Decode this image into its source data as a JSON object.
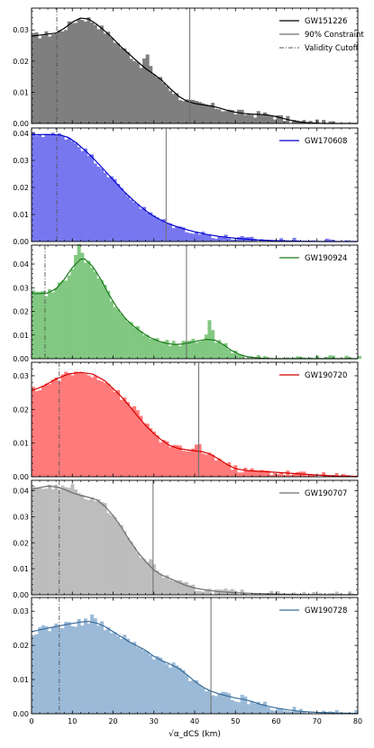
{
  "chart_data": {
    "type": "histogram",
    "layout": "6 stacked panels with shared x-axis",
    "xlabel": "√α_dCS (km)",
    "xlim": [
      0,
      80
    ],
    "xticks": [
      0,
      10,
      20,
      30,
      40,
      50,
      60,
      70,
      80
    ],
    "legend_entries": {
      "constraint": "90% Constraint",
      "cutoff": "Validity Cutoff"
    },
    "panels": [
      {
        "event": "GW151226",
        "color": "#000000",
        "fill": "#7f7f7f",
        "ylim": [
          0,
          0.037
        ],
        "yticks": [
          0.0,
          0.01,
          0.02,
          0.03
        ],
        "tick_labels": [
          "0.00",
          "0.01",
          "0.02",
          "0.03"
        ],
        "constraint": 38.8,
        "cutoff": 6.2,
        "show_full_legend": true,
        "curve": [
          [
            0,
            0.028
          ],
          [
            3,
            0.0285
          ],
          [
            6,
            0.029
          ],
          [
            8,
            0.0305
          ],
          [
            10,
            0.0325
          ],
          [
            12,
            0.0338
          ],
          [
            14,
            0.0335
          ],
          [
            16,
            0.0318
          ],
          [
            18,
            0.0296
          ],
          [
            20,
            0.0272
          ],
          [
            22,
            0.0245
          ],
          [
            24,
            0.0222
          ],
          [
            26,
            0.0198
          ],
          [
            28,
            0.0176
          ],
          [
            30,
            0.0158
          ],
          [
            32,
            0.0138
          ],
          [
            34,
            0.0112
          ],
          [
            36,
            0.0088
          ],
          [
            38,
            0.0072
          ],
          [
            40,
            0.0064
          ],
          [
            42,
            0.006
          ],
          [
            44,
            0.0056
          ],
          [
            46,
            0.005
          ],
          [
            48,
            0.0042
          ],
          [
            50,
            0.0036
          ],
          [
            52,
            0.0032
          ],
          [
            54,
            0.003
          ],
          [
            56,
            0.0029
          ],
          [
            58,
            0.0027
          ],
          [
            60,
            0.0022
          ],
          [
            62,
            0.0015
          ],
          [
            65,
            0.0006
          ],
          [
            68,
            0.0002
          ],
          [
            72,
            0.0
          ],
          [
            80,
            0.0
          ]
        ],
        "hist_noise": 0.0012,
        "hist_spikes": [
          [
            29,
            0.003
          ],
          [
            28,
            0.002
          ]
        ]
      },
      {
        "event": "GW170608",
        "color": "#0000cc",
        "fill": "#7777f0",
        "ylim": [
          0,
          0.042
        ],
        "yticks": [
          0.0,
          0.01,
          0.02,
          0.03,
          0.04
        ],
        "tick_labels": [
          "0.00",
          "0.01",
          "0.02",
          "0.03",
          "0.04"
        ],
        "constraint": 33.0,
        "cutoff": 6.2,
        "show_full_legend": false,
        "curve": [
          [
            0,
            0.0395
          ],
          [
            4,
            0.0396
          ],
          [
            7,
            0.0394
          ],
          [
            9,
            0.0385
          ],
          [
            11,
            0.0365
          ],
          [
            13,
            0.0338
          ],
          [
            15,
            0.031
          ],
          [
            17,
            0.0278
          ],
          [
            19,
            0.0245
          ],
          [
            21,
            0.0212
          ],
          [
            23,
            0.018
          ],
          [
            25,
            0.0152
          ],
          [
            27,
            0.0126
          ],
          [
            29,
            0.0103
          ],
          [
            31,
            0.0085
          ],
          [
            33,
            0.007
          ],
          [
            35,
            0.0058
          ],
          [
            37,
            0.0048
          ],
          [
            40,
            0.0036
          ],
          [
            43,
            0.0026
          ],
          [
            46,
            0.0019
          ],
          [
            50,
            0.0012
          ],
          [
            55,
            0.0006
          ],
          [
            60,
            0.0003
          ],
          [
            66,
            0.0001
          ],
          [
            72,
            0.0
          ],
          [
            80,
            0.0
          ]
        ],
        "hist_noise": 0.0012,
        "hist_spikes": []
      },
      {
        "event": "GW190924",
        "color": "#1a7a1a",
        "fill": "#82c882",
        "ylim": [
          0,
          0.048
        ],
        "yticks": [
          0.0,
          0.01,
          0.02,
          0.03,
          0.04
        ],
        "tick_labels": [
          "0.00",
          "0.01",
          "0.02",
          "0.03",
          "0.04"
        ],
        "constraint": 38.0,
        "cutoff": 3.3,
        "show_full_legend": false,
        "curve": [
          [
            0,
            0.0275
          ],
          [
            2,
            0.0275
          ],
          [
            4,
            0.0278
          ],
          [
            6,
            0.0295
          ],
          [
            8,
            0.0335
          ],
          [
            10,
            0.0385
          ],
          [
            12,
            0.042
          ],
          [
            13,
            0.0422
          ],
          [
            15,
            0.039
          ],
          [
            17,
            0.0335
          ],
          [
            19,
            0.027
          ],
          [
            21,
            0.0215
          ],
          [
            23,
            0.017
          ],
          [
            25,
            0.0138
          ],
          [
            27,
            0.0112
          ],
          [
            29,
            0.009
          ],
          [
            31,
            0.0075
          ],
          [
            33,
            0.0065
          ],
          [
            35,
            0.006
          ],
          [
            37,
            0.0062
          ],
          [
            39,
            0.0068
          ],
          [
            41,
            0.0076
          ],
          [
            43,
            0.0082
          ],
          [
            45,
            0.0078
          ],
          [
            47,
            0.006
          ],
          [
            49,
            0.0035
          ],
          [
            51,
            0.0018
          ],
          [
            53,
            0.0008
          ],
          [
            56,
            0.0002
          ],
          [
            60,
            0.0
          ],
          [
            80,
            0.0
          ]
        ],
        "hist_noise": 0.0015,
        "hist_spikes": [
          [
            11,
            0.004
          ],
          [
            12,
            0.003
          ],
          [
            44,
            0.006
          ],
          [
            43,
            0.003
          ]
        ]
      },
      {
        "event": "GW190720",
        "color": "#d40000",
        "fill": "#ff7a7a",
        "ylim": [
          0,
          0.034
        ],
        "yticks": [
          0.0,
          0.01,
          0.02,
          0.03
        ],
        "tick_labels": [
          "0.00",
          "0.01",
          "0.02",
          "0.03"
        ],
        "constraint": 41.0,
        "cutoff": 6.8,
        "show_full_legend": false,
        "curve": [
          [
            0,
            0.0255
          ],
          [
            3,
            0.027
          ],
          [
            6,
            0.029
          ],
          [
            9,
            0.0305
          ],
          [
            12,
            0.031
          ],
          [
            15,
            0.0305
          ],
          [
            18,
            0.0285
          ],
          [
            20,
            0.0262
          ],
          [
            22,
            0.0238
          ],
          [
            24,
            0.021
          ],
          [
            26,
            0.018
          ],
          [
            28,
            0.0152
          ],
          [
            30,
            0.0128
          ],
          [
            32,
            0.0108
          ],
          [
            34,
            0.0092
          ],
          [
            36,
            0.0084
          ],
          [
            38,
            0.008
          ],
          [
            40,
            0.0077
          ],
          [
            42,
            0.0074
          ],
          [
            44,
            0.0066
          ],
          [
            46,
            0.0052
          ],
          [
            48,
            0.0036
          ],
          [
            50,
            0.0024
          ],
          [
            53,
            0.0018
          ],
          [
            56,
            0.0016
          ],
          [
            60,
            0.0013
          ],
          [
            65,
            0.0009
          ],
          [
            70,
            0.0005
          ],
          [
            75,
            0.0002
          ],
          [
            80,
            0.0001
          ]
        ],
        "hist_noise": 0.0011,
        "hist_spikes": [
          [
            26,
            0.002
          ],
          [
            41,
            0.002
          ]
        ]
      },
      {
        "event": "GW190707",
        "color": "#6e6e6e",
        "fill": "#bdbdbd",
        "ylim": [
          0,
          0.044
        ],
        "yticks": [
          0.0,
          0.01,
          0.02,
          0.03,
          0.04
        ],
        "tick_labels": [
          "0.00",
          "0.01",
          "0.02",
          "0.03",
          "0.04"
        ],
        "constraint": 29.8,
        "cutoff": 6.8,
        "show_full_legend": false,
        "curve": [
          [
            0,
            0.0405
          ],
          [
            2,
            0.0412
          ],
          [
            4,
            0.0418
          ],
          [
            6,
            0.0415
          ],
          [
            8,
            0.0405
          ],
          [
            10,
            0.0392
          ],
          [
            12,
            0.0382
          ],
          [
            14,
            0.0375
          ],
          [
            16,
            0.0365
          ],
          [
            18,
            0.034
          ],
          [
            20,
            0.0305
          ],
          [
            22,
            0.026
          ],
          [
            24,
            0.021
          ],
          [
            26,
            0.0165
          ],
          [
            28,
            0.0128
          ],
          [
            30,
            0.0095
          ],
          [
            32,
            0.0075
          ],
          [
            34,
            0.0062
          ],
          [
            36,
            0.0048
          ],
          [
            38,
            0.0035
          ],
          [
            40,
            0.0026
          ],
          [
            43,
            0.0018
          ],
          [
            46,
            0.0012
          ],
          [
            50,
            0.0008
          ],
          [
            55,
            0.0005
          ],
          [
            60,
            0.0003
          ],
          [
            66,
            0.0001
          ],
          [
            72,
            0.0
          ],
          [
            80,
            0.0
          ]
        ],
        "hist_noise": 0.0014,
        "hist_spikes": [
          [
            10,
            0.003
          ],
          [
            30,
            0.002
          ]
        ]
      },
      {
        "event": "GW190728",
        "color": "#3a6d99",
        "fill": "#9bbad8",
        "ylim": [
          0,
          0.034
        ],
        "yticks": [
          0.0,
          0.01,
          0.02,
          0.03
        ],
        "tick_labels": [
          "0.00",
          "0.01",
          "0.02",
          "0.03"
        ],
        "constraint": 44.0,
        "cutoff": 6.8,
        "show_full_legend": false,
        "curve": [
          [
            0,
            0.024
          ],
          [
            3,
            0.0248
          ],
          [
            6,
            0.0255
          ],
          [
            9,
            0.0262
          ],
          [
            12,
            0.0268
          ],
          [
            14,
            0.027
          ],
          [
            16,
            0.0265
          ],
          [
            18,
            0.0255
          ],
          [
            20,
            0.024
          ],
          [
            22,
            0.0225
          ],
          [
            24,
            0.021
          ],
          [
            26,
            0.0198
          ],
          [
            28,
            0.0185
          ],
          [
            30,
            0.0168
          ],
          [
            32,
            0.0155
          ],
          [
            34,
            0.0145
          ],
          [
            36,
            0.0133
          ],
          [
            38,
            0.0115
          ],
          [
            40,
            0.0095
          ],
          [
            42,
            0.0078
          ],
          [
            44,
            0.0066
          ],
          [
            46,
            0.0058
          ],
          [
            48,
            0.0052
          ],
          [
            50,
            0.0046
          ],
          [
            52,
            0.0042
          ],
          [
            54,
            0.0036
          ],
          [
            56,
            0.0028
          ],
          [
            58,
            0.0022
          ],
          [
            60,
            0.0017
          ],
          [
            63,
            0.0011
          ],
          [
            66,
            0.0007
          ],
          [
            70,
            0.0004
          ],
          [
            75,
            0.0002
          ],
          [
            80,
            0.0001
          ]
        ],
        "hist_noise": 0.0012,
        "hist_spikes": [
          [
            15,
            0.003
          ],
          [
            52,
            0.0015
          ]
        ]
      }
    ]
  }
}
